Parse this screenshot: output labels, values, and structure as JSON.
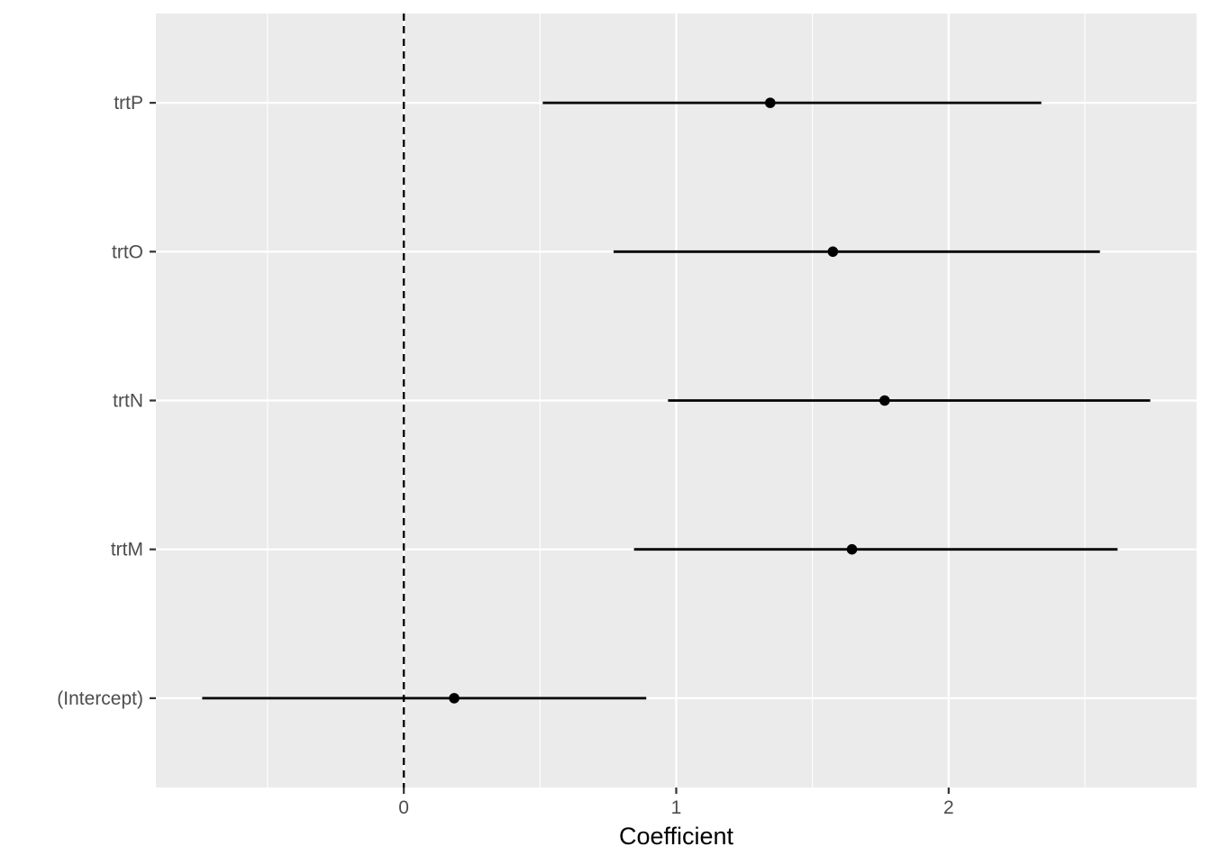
{
  "chart_data": {
    "type": "scatter",
    "subtype": "coefficient-plot",
    "title": "",
    "xlabel": "Coefficient",
    "ylabel": "",
    "xlim": [
      -0.91,
      2.91
    ],
    "x_ticks": [
      0,
      1,
      2
    ],
    "x_minor_ticks": [
      -0.5,
      0.5,
      1.5,
      2.5
    ],
    "reference_line": {
      "x": 0,
      "style": "dashed"
    },
    "grid": true,
    "legend": "none",
    "background_color": "#ebebeb",
    "grid_color": "#ffffff",
    "mark_color": "#000000",
    "categories": [
      "(Intercept)",
      "trtM",
      "trtN",
      "trtO",
      "trtP"
    ],
    "estimates": [
      0.185,
      1.645,
      1.765,
      1.575,
      1.345
    ],
    "lower": [
      -0.74,
      0.845,
      0.97,
      0.77,
      0.51
    ],
    "upper": [
      0.89,
      2.62,
      2.74,
      2.555,
      2.34
    ]
  }
}
